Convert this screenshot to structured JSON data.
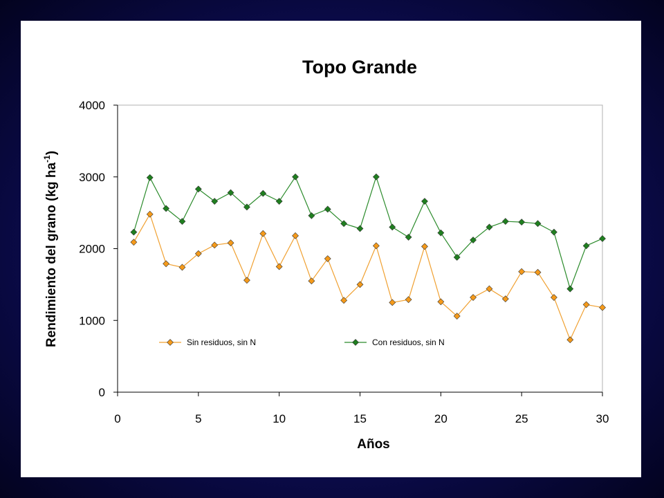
{
  "chart_data": {
    "type": "line",
    "title": "Topo Grande",
    "xlabel": "Años",
    "ylabel_main": "Rendimiento del grano (kg ha",
    "ylabel_sup": "-1",
    "ylabel_close": ")",
    "xlim": [
      0,
      30
    ],
    "ylim": [
      0,
      4000
    ],
    "xticks": [
      0,
      5,
      10,
      15,
      20,
      25,
      30
    ],
    "yticks": [
      0,
      1000,
      2000,
      3000,
      4000
    ],
    "grid": false,
    "legend_position": "inside-bottom",
    "x": [
      1,
      2,
      3,
      4,
      5,
      6,
      7,
      8,
      9,
      10,
      11,
      12,
      13,
      14,
      15,
      16,
      17,
      18,
      19,
      20,
      21,
      22,
      23,
      24,
      25,
      26,
      27,
      28,
      29,
      30
    ],
    "series": [
      {
        "name": "Sin residuos, sin N",
        "color": "#f0a030",
        "marker_color": "#f59a1a",
        "values": [
          2090,
          2480,
          1790,
          1740,
          1930,
          2050,
          2080,
          1560,
          2210,
          1750,
          2180,
          1550,
          1860,
          1280,
          1500,
          2040,
          1250,
          1290,
          2030,
          1260,
          1060,
          1320,
          1440,
          1300,
          1680,
          1670,
          1320,
          730,
          1220,
          1180
        ]
      },
      {
        "name": "Con residuos, sin N",
        "color": "#2a8a2a",
        "marker_color": "#1f7f1f",
        "values": [
          2230,
          2990,
          2560,
          2380,
          2830,
          2660,
          2780,
          2580,
          2770,
          2660,
          3000,
          2460,
          2550,
          2350,
          2280,
          3000,
          2300,
          2160,
          2660,
          2220,
          1880,
          2120,
          2300,
          2380,
          2370,
          2350,
          2230,
          1440,
          2040,
          2140
        ]
      }
    ]
  }
}
